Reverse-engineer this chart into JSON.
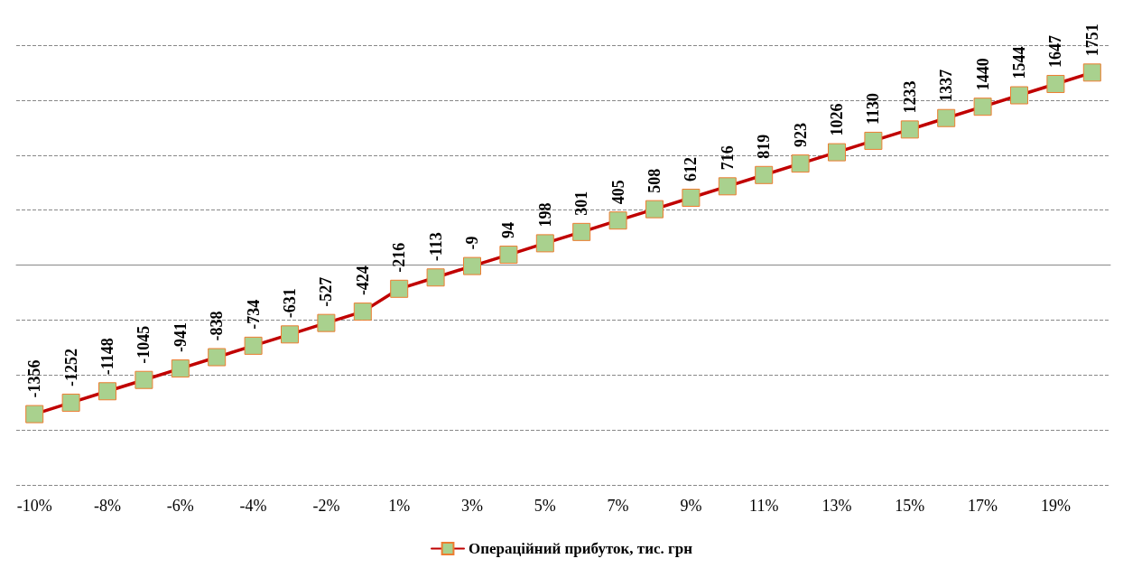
{
  "chart_data": {
    "type": "line",
    "categories": [
      "-10%",
      null,
      "-8%",
      null,
      "-6%",
      null,
      "-4%",
      null,
      "-2%",
      null,
      "1%",
      null,
      "3%",
      null,
      "5%",
      null,
      "7%",
      null,
      "9%",
      null,
      "11%",
      null,
      "13%",
      null,
      "15%",
      null,
      "17%",
      null,
      "19%",
      null
    ],
    "series": [
      {
        "name": "Операційний прибуток, тис. грн",
        "color": "#c00000",
        "colors": [
          "#a9d18e",
          "#a9d18e",
          "#a9d18e",
          "#a9d18e",
          "#a9d18e",
          "#a9d18e",
          "#a9d18e",
          "#a9d18e",
          "#a9d18e",
          "#a9d18e",
          "#a9d18e",
          "#a9d18e",
          "#a9d18e",
          "#a9d18e",
          "#a9d18e",
          "#a9d18e",
          "#a9d18e",
          "#a9d18e",
          "#a9d18e",
          "#a9d18e",
          "#a9d18e",
          "#a9d18e",
          "#a9d18e",
          "#a9d18e",
          "#a9d18e",
          "#a9d18e",
          "#a9d18e",
          "#a9d18e",
          "#a9d18e",
          "#a9d18e"
        ],
        "values": [
          -1356,
          -1252,
          -1148,
          -1045,
          -941,
          -838,
          -734,
          -631,
          -527,
          -424,
          -216,
          -113,
          -9,
          94,
          198,
          301,
          405,
          508,
          612,
          716,
          819,
          923,
          1026,
          1130,
          1233,
          1337,
          1440,
          1544,
          1647,
          1751
        ]
      }
    ],
    "ylim": [
      -2000,
      2000
    ],
    "yticks": [
      {
        "value": -2000,
        "label": null
      },
      {
        "value": -1500,
        "label": null
      },
      {
        "value": -1000,
        "label": null
      },
      {
        "value": -500,
        "label": null
      },
      {
        "value": 0,
        "label": null
      },
      {
        "value": 500,
        "label": null
      },
      {
        "value": 1000,
        "label": null
      },
      {
        "value": 1500,
        "label": null
      },
      {
        "value": 2000,
        "label": null
      }
    ],
    "tick_labels": "x",
    "grid": "y",
    "legend": "bottom",
    "marker": "square",
    "line_style": "solid",
    "data_labels": true
  }
}
